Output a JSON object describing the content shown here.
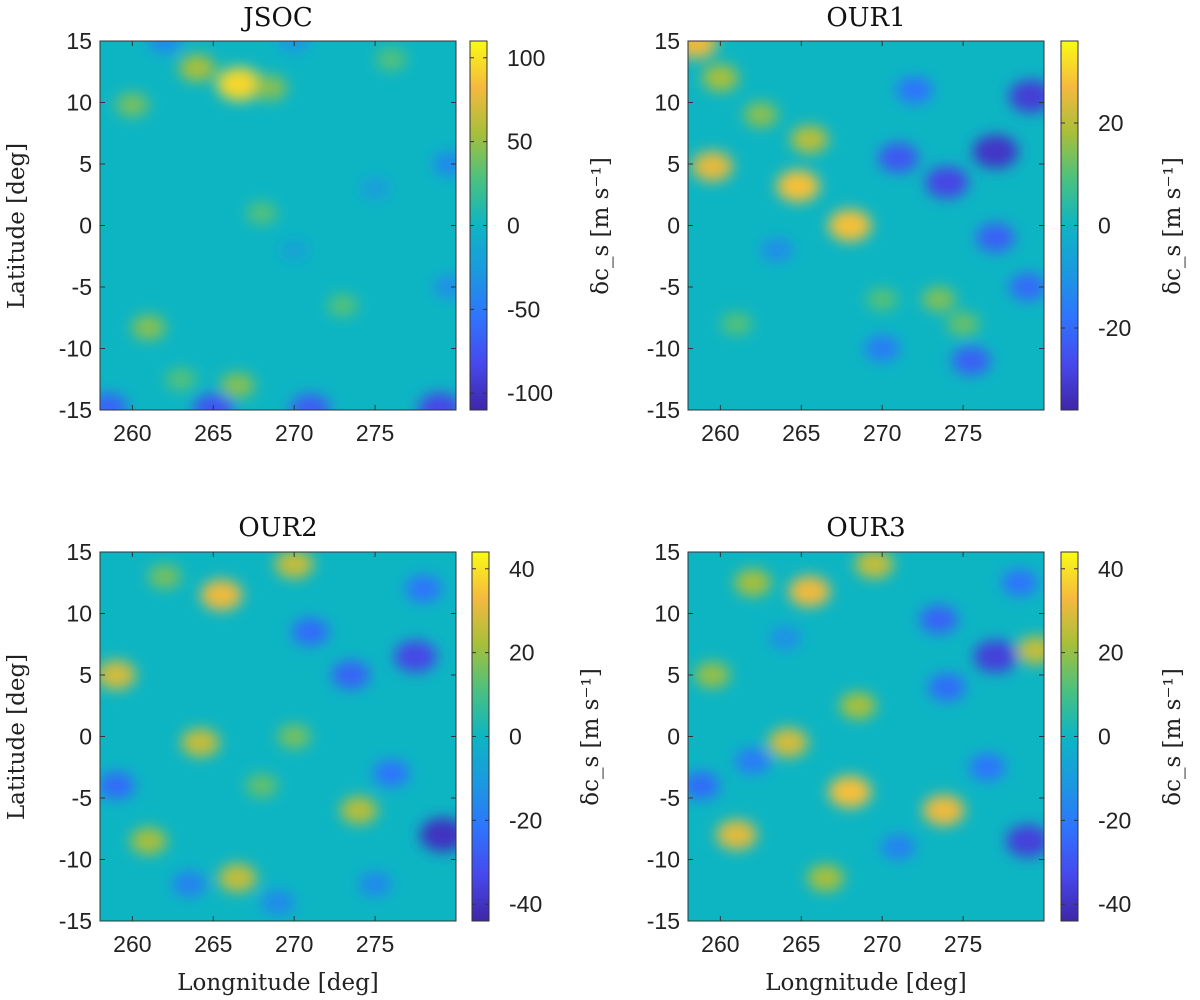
{
  "figure": {
    "description_free": true
  },
  "chart_data": [
    {
      "type": "heatmap",
      "title": "JSOC",
      "xlabel": "",
      "ylabel": "Latitude [deg]",
      "xlim": [
        258,
        280
      ],
      "ylim": [
        -15,
        15
      ],
      "xticks": [
        "260",
        "265",
        "270",
        "275"
      ],
      "yticks": [
        "15",
        "10",
        "5",
        "0",
        "-5",
        "-10",
        "-15"
      ],
      "colormap": "parula",
      "colorbar": {
        "label": "δc_s [m s⁻¹]",
        "lim": [
          -110,
          110
        ],
        "ticks": [
          "100",
          "50",
          "0",
          "-50",
          "-100"
        ]
      },
      "hotspots": [
        {
          "lon": 266.6,
          "lat": 11.5,
          "value": 95
        },
        {
          "lon": 264.0,
          "lat": 12.8,
          "value": 55
        },
        {
          "lon": 268.5,
          "lat": 11.2,
          "value": 45
        },
        {
          "lon": 260.0,
          "lat": 9.8,
          "value": 40
        },
        {
          "lon": 261.0,
          "lat": -8.3,
          "value": 45
        },
        {
          "lon": 266.5,
          "lat": -13.0,
          "value": 45
        },
        {
          "lon": 268.0,
          "lat": 1.0,
          "value": 30
        },
        {
          "lon": 273.0,
          "lat": -6.5,
          "value": 30
        },
        {
          "lon": 276.0,
          "lat": 13.5,
          "value": 30
        },
        {
          "lon": 263.0,
          "lat": -12.5,
          "value": 30
        },
        {
          "lon": 279.0,
          "lat": -14.9,
          "value": -85
        },
        {
          "lon": 265.0,
          "lat": -14.9,
          "value": -75
        },
        {
          "lon": 258.5,
          "lat": -14.8,
          "value": -65
        },
        {
          "lon": 271.0,
          "lat": -14.9,
          "value": -70
        },
        {
          "lon": 262.0,
          "lat": 15.0,
          "value": -40
        },
        {
          "lon": 279.6,
          "lat": 5.0,
          "value": -40
        },
        {
          "lon": 279.6,
          "lat": -5.0,
          "value": -35
        },
        {
          "lon": 270.0,
          "lat": 15.0,
          "value": -30
        },
        {
          "lon": 275.0,
          "lat": 3.0,
          "value": -25
        },
        {
          "lon": 270.0,
          "lat": -2.0,
          "value": -20
        }
      ]
    },
    {
      "type": "heatmap",
      "title": "OUR1",
      "xlabel": "",
      "ylabel": "",
      "xlim": [
        258,
        280
      ],
      "ylim": [
        -15,
        15
      ],
      "xticks": [
        "260",
        "265",
        "270",
        "275"
      ],
      "yticks": [
        "15",
        "10",
        "5",
        "0",
        "-5",
        "-10",
        "-15"
      ],
      "colormap": "parula",
      "colorbar": {
        "label": "δc_s [m s⁻¹]",
        "lim": [
          -36,
          36
        ],
        "ticks": [
          "20",
          "0",
          "-20"
        ]
      },
      "hotspots": [
        {
          "lon": 264.8,
          "lat": 3.2,
          "value": 28
        },
        {
          "lon": 259.5,
          "lat": 4.8,
          "value": 25
        },
        {
          "lon": 268.0,
          "lat": 0.0,
          "value": 28
        },
        {
          "lon": 258.5,
          "lat": 14.8,
          "value": 26
        },
        {
          "lon": 265.5,
          "lat": 7.0,
          "value": 20
        },
        {
          "lon": 260.0,
          "lat": 12.0,
          "value": 18
        },
        {
          "lon": 262.5,
          "lat": 9.0,
          "value": 15
        },
        {
          "lon": 270.0,
          "lat": -6.0,
          "value": 10
        },
        {
          "lon": 273.5,
          "lat": -6.0,
          "value": 14
        },
        {
          "lon": 275.0,
          "lat": -8.0,
          "value": 12
        },
        {
          "lon": 261.0,
          "lat": -8.0,
          "value": 10
        },
        {
          "lon": 277.0,
          "lat": 6.0,
          "value": -32
        },
        {
          "lon": 279.2,
          "lat": 10.5,
          "value": -30
        },
        {
          "lon": 274.0,
          "lat": 3.5,
          "value": -28
        },
        {
          "lon": 271.0,
          "lat": 5.5,
          "value": -24
        },
        {
          "lon": 275.5,
          "lat": -11.0,
          "value": -22
        },
        {
          "lon": 277.0,
          "lat": -1.0,
          "value": -22
        },
        {
          "lon": 279.0,
          "lat": -5.0,
          "value": -20
        },
        {
          "lon": 272.0,
          "lat": 11.0,
          "value": -18
        },
        {
          "lon": 270.0,
          "lat": -10.0,
          "value": -16
        },
        {
          "lon": 263.5,
          "lat": -2.0,
          "value": -12
        }
      ]
    },
    {
      "type": "heatmap",
      "title": "OUR2",
      "xlabel": "Longnitude [deg]",
      "ylabel": "Latitude [deg]",
      "xlim": [
        258,
        280
      ],
      "ylim": [
        -15,
        15
      ],
      "xticks": [
        "260",
        "265",
        "270",
        "275"
      ],
      "yticks": [
        "15",
        "10",
        "5",
        "0",
        "-5",
        "-10",
        "-15"
      ],
      "colormap": "parula",
      "colorbar": {
        "label": "δc_s [m s⁻¹]",
        "lim": [
          -44,
          44
        ],
        "ticks": [
          "40",
          "20",
          "0",
          "-20",
          "-40"
        ]
      },
      "hotspots": [
        {
          "lon": 265.5,
          "lat": 11.5,
          "value": 32
        },
        {
          "lon": 259.0,
          "lat": 5.0,
          "value": 28
        },
        {
          "lon": 270.0,
          "lat": 14.0,
          "value": 26
        },
        {
          "lon": 264.2,
          "lat": -0.5,
          "value": 26
        },
        {
          "lon": 266.5,
          "lat": -11.5,
          "value": 26
        },
        {
          "lon": 274.0,
          "lat": -6.0,
          "value": 24
        },
        {
          "lon": 261.0,
          "lat": -8.5,
          "value": 22
        },
        {
          "lon": 270.0,
          "lat": 0.0,
          "value": 16
        },
        {
          "lon": 268.0,
          "lat": -4.0,
          "value": 14
        },
        {
          "lon": 262.0,
          "lat": 13.0,
          "value": 16
        },
        {
          "lon": 279.2,
          "lat": -8.0,
          "value": -40
        },
        {
          "lon": 277.5,
          "lat": 6.5,
          "value": -34
        },
        {
          "lon": 273.5,
          "lat": 5.0,
          "value": -26
        },
        {
          "lon": 271.0,
          "lat": 8.5,
          "value": -24
        },
        {
          "lon": 276.0,
          "lat": -3.0,
          "value": -22
        },
        {
          "lon": 259.0,
          "lat": -4.0,
          "value": -24
        },
        {
          "lon": 263.5,
          "lat": -12.0,
          "value": -18
        },
        {
          "lon": 278.0,
          "lat": 12.0,
          "value": -22
        },
        {
          "lon": 269.0,
          "lat": -13.5,
          "value": -16
        },
        {
          "lon": 275.0,
          "lat": -12.0,
          "value": -16
        }
      ]
    },
    {
      "type": "heatmap",
      "title": "OUR3",
      "xlabel": "Longnitude [deg]",
      "ylabel": "",
      "xlim": [
        258,
        280
      ],
      "ylim": [
        -15,
        15
      ],
      "xticks": [
        "260",
        "265",
        "270",
        "275"
      ],
      "yticks": [
        "15",
        "10",
        "5",
        "0",
        "-5",
        "-10",
        "-15"
      ],
      "colormap": "parula",
      "colorbar": {
        "label": "δc_s [m s⁻¹]",
        "lim": [
          -44,
          44
        ],
        "ticks": [
          "40",
          "20",
          "0",
          "-20",
          "-40"
        ]
      },
      "hotspots": [
        {
          "lon": 265.5,
          "lat": 11.8,
          "value": 32
        },
        {
          "lon": 268.0,
          "lat": -4.5,
          "value": 34
        },
        {
          "lon": 273.8,
          "lat": -6.0,
          "value": 32
        },
        {
          "lon": 261.0,
          "lat": -8.0,
          "value": 30
        },
        {
          "lon": 264.2,
          "lat": -0.5,
          "value": 28
        },
        {
          "lon": 269.5,
          "lat": 14.0,
          "value": 26
        },
        {
          "lon": 279.5,
          "lat": 7.0,
          "value": 26
        },
        {
          "lon": 262.0,
          "lat": 12.5,
          "value": 22
        },
        {
          "lon": 268.5,
          "lat": 2.5,
          "value": 22
        },
        {
          "lon": 266.5,
          "lat": -11.5,
          "value": 22
        },
        {
          "lon": 259.5,
          "lat": 5.0,
          "value": 20
        },
        {
          "lon": 277.0,
          "lat": 6.5,
          "value": -36
        },
        {
          "lon": 279.0,
          "lat": -8.5,
          "value": -36
        },
        {
          "lon": 273.5,
          "lat": 9.5,
          "value": -26
        },
        {
          "lon": 274.0,
          "lat": 4.0,
          "value": -24
        },
        {
          "lon": 276.5,
          "lat": -2.5,
          "value": -22
        },
        {
          "lon": 258.8,
          "lat": -4.0,
          "value": -24
        },
        {
          "lon": 278.5,
          "lat": 12.5,
          "value": -22
        },
        {
          "lon": 262.0,
          "lat": -2.0,
          "value": -20
        },
        {
          "lon": 271.0,
          "lat": -9.0,
          "value": -18
        },
        {
          "lon": 264.0,
          "lat": 8.0,
          "value": -14
        }
      ]
    }
  ]
}
